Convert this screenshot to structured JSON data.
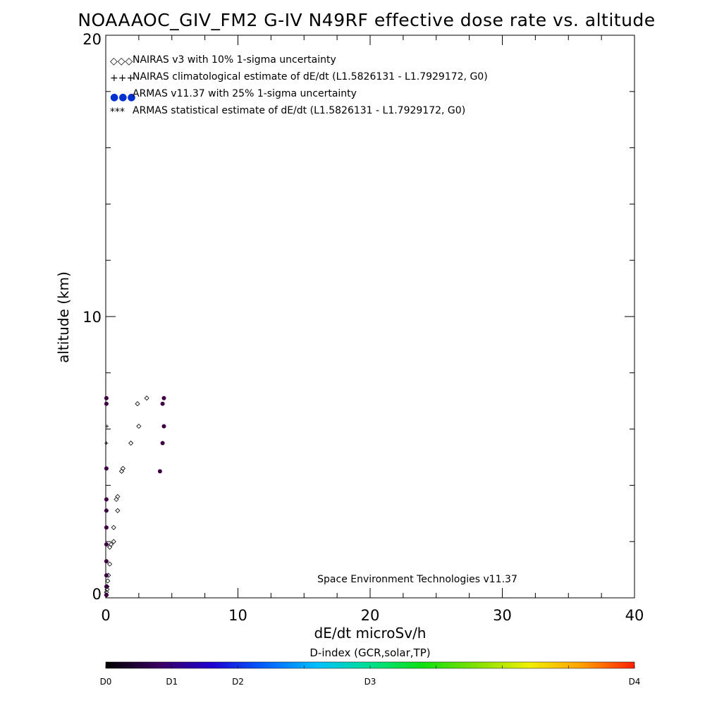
{
  "chart_data": {
    "type": "scatter",
    "title": "NOAAAOC_GIV_FM2 G-IV   N49RF  effective dose rate vs. altitude",
    "xlabel": "dE/dt microSv/h",
    "ylabel": "altitude (km)",
    "xlim": [
      0,
      40
    ],
    "ylim": [
      0,
      20
    ],
    "x_ticks": [
      "0",
      "10",
      "20",
      "30",
      "40"
    ],
    "y_ticks": [
      "0",
      "10",
      "20"
    ],
    "legend_position": "top-left",
    "legend": [
      {
        "symbol": "◇◇◇",
        "label": "NAIRAS v3 with 10% 1-sigma uncertainty"
      },
      {
        "symbol": "+++",
        "label": "NAIRAS climatological estimate of dE/dt (L1.5826131 - L1.7929172, G0)"
      },
      {
        "symbol": "●●●",
        "label": "ARMAS v11.37 with 25% 1-sigma uncertainty"
      },
      {
        "symbol": "***",
        "label": "ARMAS statistical estimate of dE/dt (L1.5826131 - L1.7929172, G0)"
      }
    ],
    "credit": "Space Environment Technologies v11.37",
    "series": [
      {
        "name": "NAIRAS v3 with 10% 1-sigma uncertainty",
        "marker": "diamond",
        "points": [
          [
            3.1,
            7.1
          ],
          [
            2.4,
            6.9
          ],
          [
            2.5,
            6.1
          ],
          [
            1.9,
            5.5
          ],
          [
            1.3,
            4.6
          ],
          [
            1.2,
            4.5
          ],
          [
            0.9,
            3.6
          ],
          [
            0.8,
            3.5
          ],
          [
            0.9,
            3.1
          ],
          [
            0.6,
            2.5
          ],
          [
            0.6,
            2.0
          ],
          [
            0.4,
            1.9
          ],
          [
            0.3,
            1.8
          ],
          [
            0.3,
            1.2
          ],
          [
            0.2,
            0.8
          ],
          [
            0.15,
            0.6
          ],
          [
            0.1,
            0.4
          ],
          [
            0.1,
            0.3
          ],
          [
            0.05,
            0.2
          ],
          [
            0.05,
            0.1
          ]
        ]
      },
      {
        "name": "NAIRAS climatological estimate of dE/dt (L1.5826131 - L1.7929172, G0)",
        "marker": "plus",
        "points": [
          [
            0.1,
            6.1
          ],
          [
            0.05,
            5.5
          ]
        ]
      },
      {
        "name": "ARMAS v11.37 with 25% 1-sigma uncertainty",
        "marker": "dot",
        "color": "#3a0040",
        "points": [
          [
            4.4,
            7.1
          ],
          [
            4.3,
            6.9
          ],
          [
            4.4,
            6.1
          ],
          [
            4.3,
            5.5
          ],
          [
            4.1,
            4.5
          ],
          [
            0.05,
            7.1
          ],
          [
            0.05,
            6.9
          ],
          [
            0.05,
            4.6
          ],
          [
            0.05,
            3.5
          ],
          [
            0.05,
            3.1
          ],
          [
            0.05,
            2.5
          ],
          [
            0.05,
            1.9
          ],
          [
            0.05,
            1.3
          ],
          [
            0.05,
            0.8
          ],
          [
            0.05,
            0.4
          ],
          [
            0.05,
            0.1
          ]
        ]
      }
    ],
    "colorbar": {
      "title": "D-index (GCR,solar,TP)",
      "labels": [
        {
          "text": "D0",
          "pos": 0.0
        },
        {
          "text": "D1",
          "pos": 0.125
        },
        {
          "text": "D2",
          "pos": 0.25
        },
        {
          "text": "D3",
          "pos": 0.5
        },
        {
          "text": "D4",
          "pos": 1.0
        }
      ],
      "colors": [
        "#000000",
        "#3a0060",
        "#2000d0",
        "#0060ff",
        "#00c0ff",
        "#00e090",
        "#10e010",
        "#80e000",
        "#f0f000",
        "#ffa000",
        "#ff2000"
      ]
    }
  }
}
